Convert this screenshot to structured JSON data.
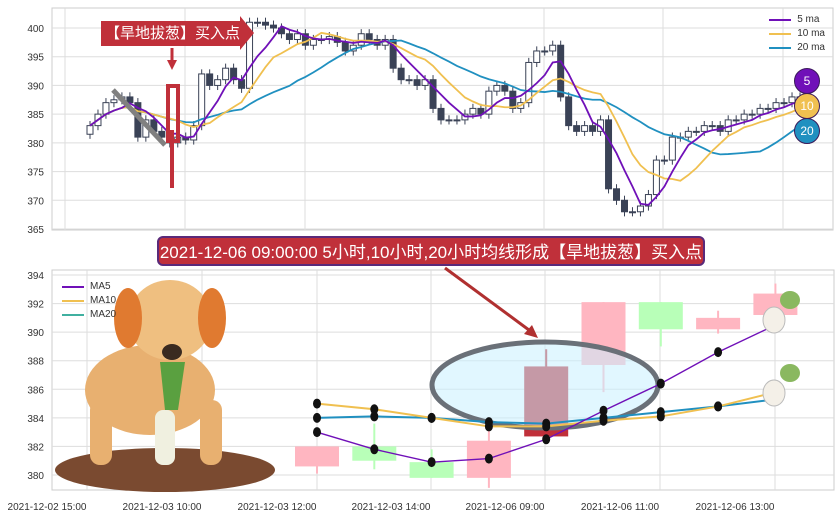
{
  "banner": "2021-12-06 09:00:00 5小时,10小时,20小时均线形成【旱地拔葱】买入点",
  "arrow_label": "【旱地拔葱】买入点",
  "ma_badges": [
    "5",
    "10",
    "20"
  ],
  "colors": {
    "ma5": "#7010b8",
    "ma10": "#f0c050",
    "ma20": "#2090c0",
    "up_light": "#ffb6c1",
    "down_light": "#b8ffb8",
    "signal": "#c0303a",
    "dark_candle": "#3a4256"
  },
  "chart_data": [
    {
      "type": "candlestick",
      "ylim": [
        365,
        402
      ],
      "yticks": [
        365,
        370,
        375,
        380,
        385,
        390,
        395,
        400
      ],
      "legend": [
        "5 ma",
        "10 ma",
        "20 ma"
      ],
      "legend_placement": "top-right",
      "grid": true,
      "closes": [
        383,
        385,
        387,
        387.5,
        388,
        387,
        381,
        384,
        382,
        381,
        380,
        381,
        380.5,
        383,
        392,
        390,
        391,
        393,
        391,
        389.5,
        401,
        401,
        400.5,
        400,
        399,
        398,
        399,
        397,
        398,
        398,
        398.5,
        397.5,
        396,
        397,
        399,
        398,
        397,
        398,
        393,
        391,
        391,
        390,
        391,
        386,
        384,
        384,
        384,
        385,
        386,
        385,
        389,
        390,
        389,
        386,
        387,
        394,
        396,
        396,
        397,
        388,
        383,
        382,
        383,
        382,
        384,
        372,
        370,
        368,
        368,
        369,
        371,
        377,
        377,
        381,
        381,
        382,
        382,
        383,
        383,
        382,
        384,
        384,
        385,
        385,
        386,
        386,
        387,
        387,
        388,
        388
      ]
    },
    {
      "type": "candlestick",
      "ylim": [
        379,
        394
      ],
      "yticks": [
        380,
        382,
        384,
        386,
        388,
        390,
        392,
        394
      ],
      "xticks": [
        "2021-12-02 15:00",
        "2021-12-03 10:00",
        "2021-12-03 12:00",
        "2021-12-03 14:00",
        "2021-12-06 09:00",
        "2021-12-06 11:00",
        "2021-12-06 13:00"
      ],
      "legend": [
        "MA5",
        "MA10",
        "MA20"
      ],
      "legend_placement": "top-left",
      "grid": true,
      "candles": [
        {
          "o": 380.6,
          "c": 382.0,
          "l": 380.1,
          "h": 382.0,
          "kind": "up"
        },
        {
          "o": 382.0,
          "c": 381.0,
          "l": 380.4,
          "h": 383.6,
          "kind": "down"
        },
        {
          "o": 380.9,
          "c": 379.8,
          "l": 379.8,
          "h": 381.8,
          "kind": "down"
        },
        {
          "o": 379.8,
          "c": 382.4,
          "l": 379.1,
          "h": 383.2,
          "kind": "up"
        },
        {
          "o": 382.7,
          "c": 387.6,
          "l": 382.7,
          "h": 388.8,
          "kind": "signal"
        },
        {
          "o": 387.7,
          "c": 392.1,
          "l": 385.8,
          "h": 392.1,
          "kind": "up"
        },
        {
          "o": 392.1,
          "c": 390.2,
          "l": 389.0,
          "h": 392.1,
          "kind": "down"
        },
        {
          "o": 390.2,
          "c": 391.0,
          "l": 389.9,
          "h": 391.5,
          "kind": "up"
        },
        {
          "o": 391.2,
          "c": 392.7,
          "l": 391.2,
          "h": 393.4,
          "kind": "up"
        }
      ],
      "ma5": [
        383.0,
        381.8,
        380.9,
        381.15,
        382.5,
        384.5,
        386.4,
        388.6,
        390.5
      ],
      "ma10": [
        385.0,
        384.6,
        384.0,
        383.4,
        383.4,
        383.8,
        384.1,
        384.8,
        385.8
      ],
      "ma20": [
        384.0,
        384.1,
        384.0,
        383.7,
        383.6,
        384.0,
        384.4,
        384.8,
        385.3
      ]
    }
  ]
}
